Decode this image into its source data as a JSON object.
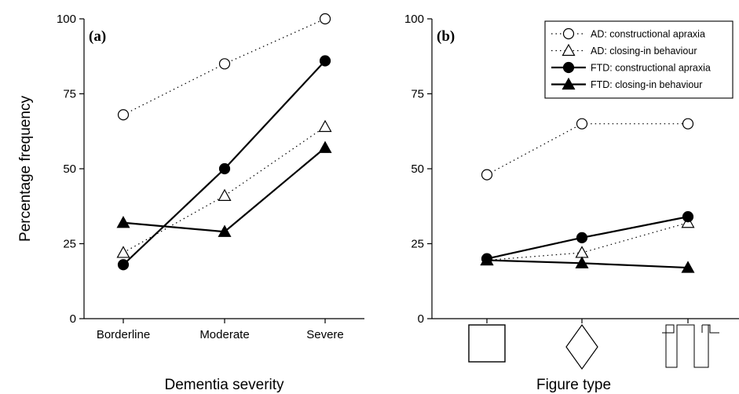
{
  "figure": {
    "y_axis_label": "Percentage frequency"
  },
  "legend": {
    "entries": [
      {
        "label": "AD: constructional apraxia",
        "series": "AD-apraxia"
      },
      {
        "label": "AD: closing-in behaviour",
        "series": "AD-closing"
      },
      {
        "label": "FTD: constructional apraxia",
        "series": "FTD-apraxia"
      },
      {
        "label": "FTD: closing-in behaviour",
        "series": "FTD-closing"
      }
    ],
    "placement": "top-right of panel b"
  },
  "chart_data": [
    {
      "type": "line",
      "panel_label": "(a)",
      "categories": [
        "Borderline",
        "Moderate",
        "Severe"
      ],
      "xlabel": "Dementia severity",
      "ylabel": "Percentage frequency",
      "ylim": [
        0,
        100
      ],
      "yticks": [
        0,
        25,
        50,
        75,
        100
      ],
      "grid": false,
      "series": [
        {
          "name": "AD: constructional apraxia",
          "key": "AD-apraxia",
          "values": [
            68,
            85,
            100
          ],
          "marker": "circle",
          "filled": false,
          "line": "dotted"
        },
        {
          "name": "AD: closing-in behaviour",
          "key": "AD-closing",
          "values": [
            22,
            41,
            64
          ],
          "marker": "triangle",
          "filled": false,
          "line": "dotted"
        },
        {
          "name": "FTD: constructional apraxia",
          "key": "FTD-apraxia",
          "values": [
            18,
            50,
            86
          ],
          "marker": "circle",
          "filled": true,
          "line": "solid"
        },
        {
          "name": "FTD: closing-in behaviour",
          "key": "FTD-closing",
          "values": [
            32,
            29,
            57
          ],
          "marker": "triangle",
          "filled": true,
          "line": "solid"
        }
      ]
    },
    {
      "type": "line",
      "panel_label": "(b)",
      "categories": [
        "square",
        "diamond",
        "complex-figure"
      ],
      "category_icons": [
        "square-figure-icon",
        "diamond-figure-icon",
        "complex-figure-icon"
      ],
      "xlabel": "Figure type",
      "ylabel": "",
      "ylim": [
        0,
        100
      ],
      "yticks": [
        0,
        25,
        50,
        75,
        100
      ],
      "grid": false,
      "series": [
        {
          "name": "AD: constructional apraxia",
          "key": "AD-apraxia",
          "values": [
            48,
            65,
            65
          ],
          "marker": "circle",
          "filled": false,
          "line": "dotted"
        },
        {
          "name": "AD: closing-in behaviour",
          "key": "AD-closing",
          "values": [
            19.5,
            22,
            32
          ],
          "marker": "triangle",
          "filled": false,
          "line": "dotted"
        },
        {
          "name": "FTD: constructional apraxia",
          "key": "FTD-apraxia",
          "values": [
            20,
            27,
            34
          ],
          "marker": "circle",
          "filled": true,
          "line": "solid"
        },
        {
          "name": "FTD: closing-in behaviour",
          "key": "FTD-closing",
          "values": [
            19.5,
            18.5,
            17
          ],
          "marker": "triangle",
          "filled": true,
          "line": "solid"
        }
      ]
    }
  ]
}
